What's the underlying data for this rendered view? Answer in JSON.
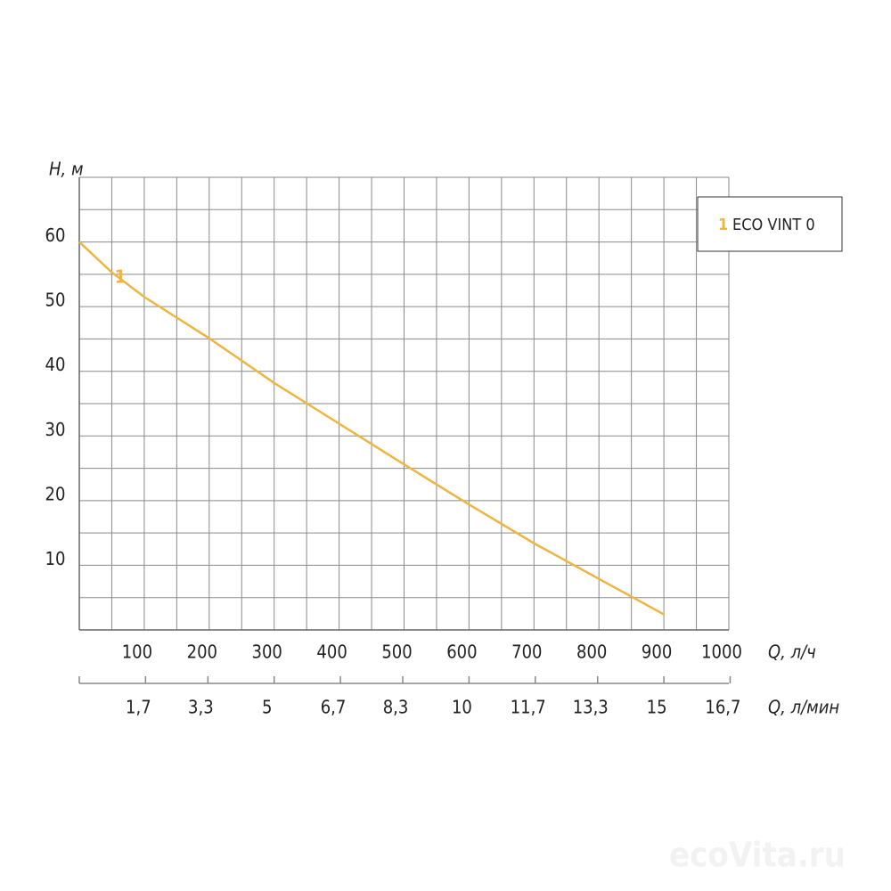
{
  "chart_data": {
    "type": "line",
    "y_label": "H, м",
    "x_label": "Q, л/ч",
    "x2_label": "Q, л/мин",
    "x": [
      0,
      50,
      100,
      200,
      300,
      400,
      500,
      600,
      700,
      800,
      900
    ],
    "series": [
      {
        "name": "ECO VINT 0",
        "label": "1",
        "color": "#f0b440",
        "values": [
          60,
          55.3,
          51.5,
          45.1,
          38.2,
          31.9,
          25.6,
          19.4,
          13.4,
          7.9,
          2.4
        ]
      }
    ],
    "xlim": [
      0,
      1000
    ],
    "xticks": [
      100,
      200,
      300,
      400,
      500,
      600,
      700,
      800,
      900,
      1000
    ],
    "ylim": [
      0,
      70
    ],
    "yticks": [
      10,
      20,
      30,
      40,
      50,
      60
    ],
    "x2lim": [
      0,
      16.667
    ],
    "x2ticks": [
      {
        "value": 1.7,
        "label": "1,7"
      },
      {
        "value": 3.3,
        "label": "3,3"
      },
      5,
      {
        "value": 6.7,
        "label": "6,7"
      },
      {
        "value": 8.3,
        "label": "8,3"
      },
      10,
      {
        "value": 11.7,
        "label": "11,7"
      },
      {
        "value": 13.3,
        "label": "13,3"
      },
      15,
      {
        "value": 16.7,
        "label": "16,7"
      }
    ],
    "grid": true,
    "legend": "upper right",
    "watermark": "ecoVita.ru"
  }
}
